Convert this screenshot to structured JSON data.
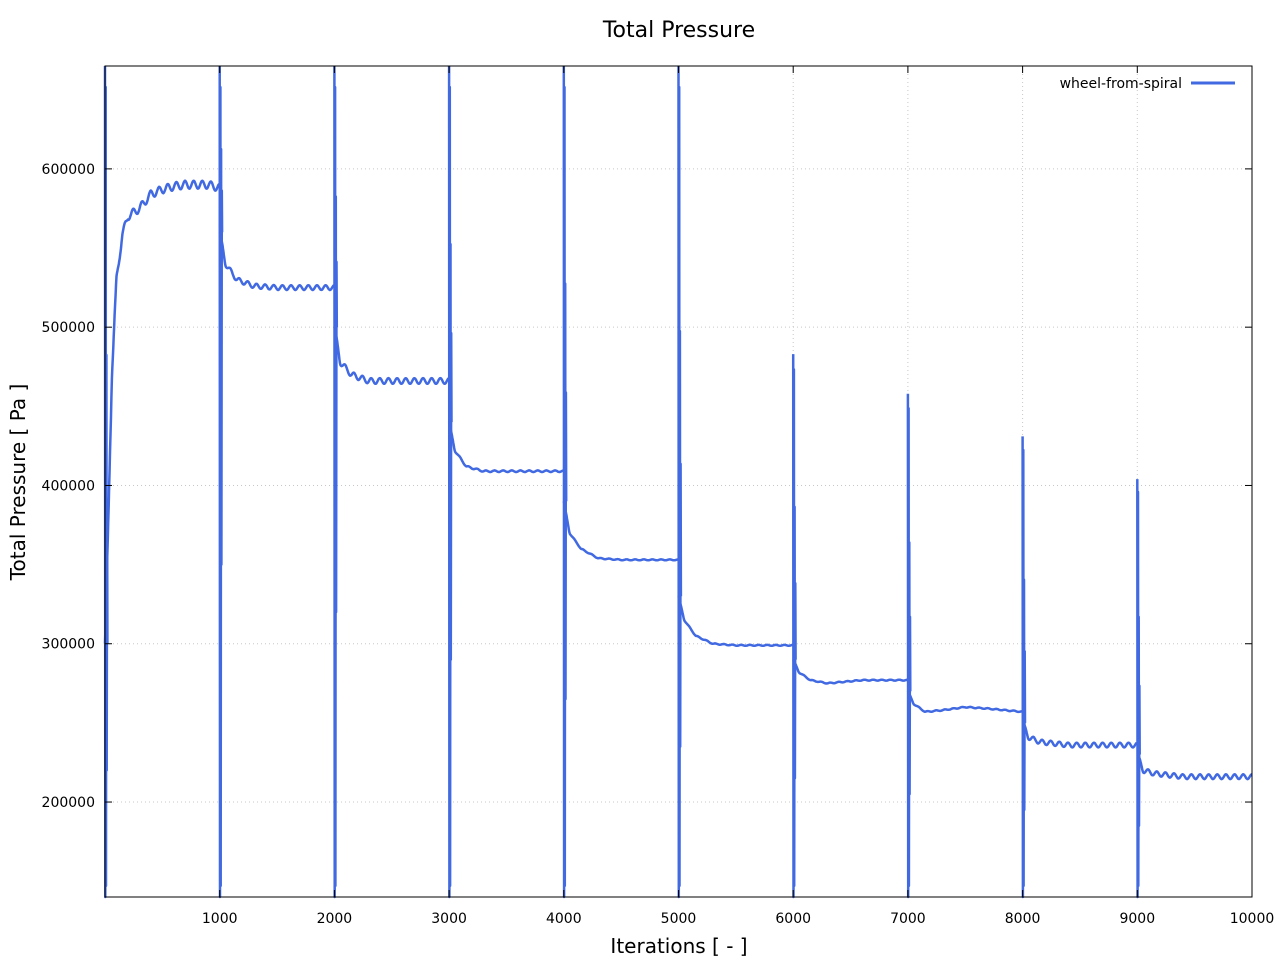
{
  "chart_data": {
    "type": "line",
    "title": "Total Pressure",
    "xlabel": "Iterations [ - ]",
    "ylabel": "Total Pressure [ Pa ]",
    "xlim": [
      0,
      10000
    ],
    "ylim": [
      140000,
      665000
    ],
    "x_ticks": [
      1000,
      2000,
      3000,
      4000,
      5000,
      6000,
      7000,
      8000,
      9000,
      10000
    ],
    "y_ticks": [
      200000,
      300000,
      400000,
      500000,
      600000
    ],
    "grid": true,
    "legend_position": "top-right",
    "series_color": "#4169e1",
    "series": [
      {
        "name": "wheel-from-spiral",
        "baseline_segments": [
          {
            "start": 0,
            "points": [
              [
                0,
                300000
              ],
              [
                30,
                380000
              ],
              [
                60,
                470000
              ],
              [
                100,
                530000
              ],
              [
                150,
                558000
              ],
              [
                200,
                570000
              ],
              [
                300,
                575000
              ],
              [
                400,
                584000
              ],
              [
                500,
                587000
              ],
              [
                600,
                589000
              ],
              [
                700,
                590000
              ],
              [
                800,
                590000
              ],
              [
                900,
                590000
              ],
              [
                999,
                588000
              ]
            ],
            "ripple": 2500
          },
          {
            "start": 1000,
            "points": [
              [
                1000,
                560000
              ],
              [
                1050,
                540000
              ],
              [
                1150,
                530000
              ],
              [
                1300,
                526000
              ],
              [
                1500,
                525000
              ],
              [
                1999,
                525000
              ]
            ],
            "ripple": 1500
          },
          {
            "start": 2000,
            "points": [
              [
                2000,
                500000
              ],
              [
                2050,
                478000
              ],
              [
                2150,
                470000
              ],
              [
                2300,
                466000
              ],
              [
                2600,
                466000
              ],
              [
                2999,
                466000
              ]
            ],
            "ripple": 1800
          },
          {
            "start": 3000,
            "points": [
              [
                3000,
                440000
              ],
              [
                3050,
                422000
              ],
              [
                3150,
                412000
              ],
              [
                3300,
                409000
              ],
              [
                3999,
                409000
              ]
            ],
            "ripple": 500
          },
          {
            "start": 4000,
            "points": [
              [
                4000,
                390000
              ],
              [
                4050,
                370000
              ],
              [
                4150,
                360000
              ],
              [
                4300,
                354000
              ],
              [
                4500,
                353000
              ],
              [
                4999,
                353000
              ]
            ],
            "ripple": 300
          },
          {
            "start": 5000,
            "points": [
              [
                5000,
                330000
              ],
              [
                5050,
                315000
              ],
              [
                5150,
                305000
              ],
              [
                5300,
                300000
              ],
              [
                5500,
                299000
              ],
              [
                5999,
                299000
              ]
            ],
            "ripple": 300
          },
          {
            "start": 6000,
            "points": [
              [
                6000,
                290000
              ],
              [
                6050,
                282000
              ],
              [
                6150,
                277000
              ],
              [
                6300,
                275000
              ],
              [
                6600,
                277000
              ],
              [
                6999,
                277000
              ]
            ],
            "ripple": 300
          },
          {
            "start": 7000,
            "points": [
              [
                7000,
                270000
              ],
              [
                7050,
                262000
              ],
              [
                7150,
                257000
              ],
              [
                7300,
                258000
              ],
              [
                7500,
                260000
              ],
              [
                7700,
                259000
              ],
              [
                7999,
                257000
              ]
            ],
            "ripple": 300
          },
          {
            "start": 8000,
            "points": [
              [
                8000,
                250000
              ],
              [
                8050,
                241000
              ],
              [
                8150,
                238000
              ],
              [
                8400,
                236000
              ],
              [
                8999,
                236000
              ]
            ],
            "ripple": 1500
          },
          {
            "start": 9000,
            "points": [
              [
                9000,
                230000
              ],
              [
                9050,
                220000
              ],
              [
                9150,
                218000
              ],
              [
                9400,
                216000
              ],
              [
                10000,
                216000
              ]
            ],
            "ripple": 1500
          }
        ],
        "spikes": [
          {
            "x": 0,
            "max": 665000,
            "min": 140000
          },
          {
            "x": 1000,
            "max": 665000,
            "min": 140000
          },
          {
            "x": 2000,
            "max": 665000,
            "min": 140000
          },
          {
            "x": 3000,
            "max": 665000,
            "min": 140000
          },
          {
            "x": 4000,
            "max": 665000,
            "min": 140000
          },
          {
            "x": 5000,
            "max": 665000,
            "min": 140000
          },
          {
            "x": 6000,
            "max": 483000,
            "min": 140000
          },
          {
            "x": 7000,
            "max": 458000,
            "min": 140000
          },
          {
            "x": 8000,
            "max": 431000,
            "min": 140000
          },
          {
            "x": 9000,
            "max": 404000,
            "min": 140000
          }
        ]
      }
    ]
  }
}
